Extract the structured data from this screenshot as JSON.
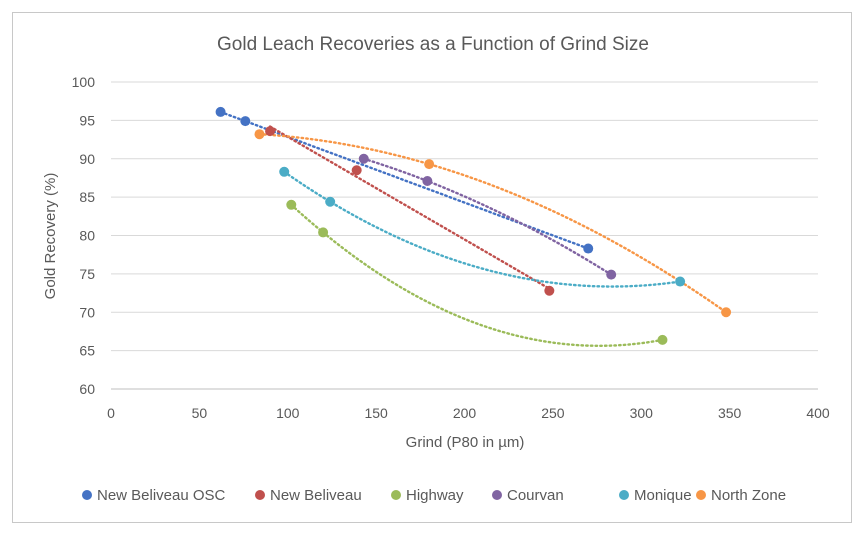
{
  "chart_data": {
    "type": "scatter",
    "title": "Gold Leach Recoveries as a Function of Grind Size",
    "xlabel": "Grind (P80  in µm)",
    "ylabel": "Gold Recovery (%)",
    "xlim": [
      0,
      400
    ],
    "ylim": [
      60,
      100
    ],
    "xticks": [
      0,
      50,
      100,
      150,
      200,
      250,
      300,
      350,
      400
    ],
    "yticks": [
      60,
      65,
      70,
      75,
      80,
      85,
      90,
      95,
      100
    ],
    "grid": "horizontal",
    "legend_position": "bottom",
    "series": [
      {
        "name": "New Beliveau OSC",
        "color": "#4472C4",
        "x": [
          62,
          76,
          270
        ],
        "y": [
          96.1,
          94.9,
          78.3
        ],
        "trendline": "linear"
      },
      {
        "name": "New Beliveau",
        "color": "#C0504D",
        "x": [
          90,
          139,
          248
        ],
        "y": [
          93.6,
          88.5,
          72.8
        ],
        "trendline": "linear"
      },
      {
        "name": "Highway",
        "color": "#9BBB59",
        "x": [
          102,
          120,
          312
        ],
        "y": [
          84.0,
          80.4,
          66.4
        ],
        "trendline": "polynomial"
      },
      {
        "name": "Courvan",
        "color": "#8064A2",
        "x": [
          143,
          179,
          283
        ],
        "y": [
          90.0,
          87.1,
          74.9
        ],
        "trendline": "polynomial"
      },
      {
        "name": "Monique",
        "color": "#4BACC6",
        "x": [
          98,
          124,
          322
        ],
        "y": [
          88.3,
          84.4,
          74.0
        ],
        "trendline": "polynomial"
      },
      {
        "name": "North Zone",
        "color": "#F79646",
        "x": [
          84,
          180,
          348
        ],
        "y": [
          93.2,
          89.3,
          70.0
        ],
        "trendline": "polynomial"
      }
    ]
  }
}
